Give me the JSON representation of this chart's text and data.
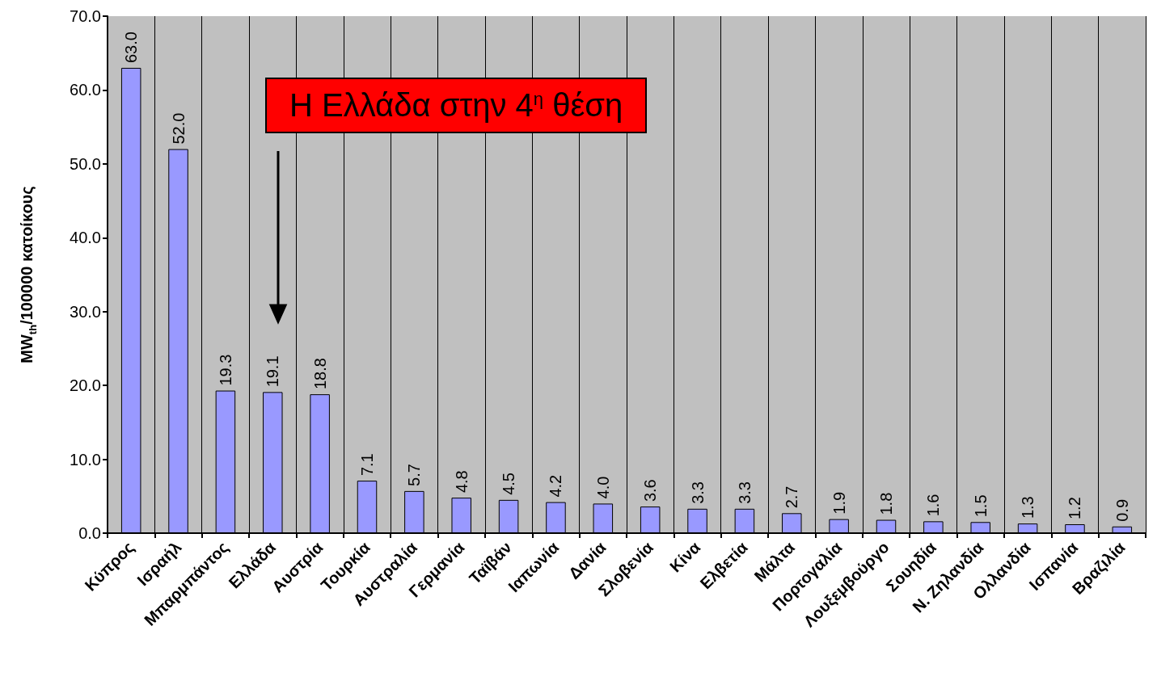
{
  "chart_data": {
    "type": "bar",
    "ylabel": "MW$_{th}$/100000 κατοίκους",
    "categories": [
      "Κύπρος",
      "Ισραήλ",
      "Μπαρμπάντος",
      "Ελλάδα",
      "Αυστρία",
      "Τουρκία",
      "Αυστραλία",
      "Γερμανία",
      "Ταϊβάν",
      "Ιαπωνία",
      "Δανία",
      "Σλοβενία",
      "Κίνα",
      "Ελβετία",
      "Μάλτα",
      "Πορτογαλία",
      "Λουξεμβούργο",
      "Σουηδία",
      "Ν. Ζηλανδία",
      "Ολλανδία",
      "Ισπανία",
      "Βραζιλία"
    ],
    "values": [
      63.0,
      52.0,
      19.3,
      19.1,
      18.8,
      7.1,
      5.7,
      4.8,
      4.5,
      4.2,
      4.0,
      3.6,
      3.3,
      3.3,
      2.7,
      1.9,
      1.8,
      1.6,
      1.5,
      1.3,
      1.2,
      0.9
    ],
    "value_labels": [
      "63.0",
      "52.0",
      "19.3",
      "19.1",
      "18.8",
      "7.1",
      "5.7",
      "4.8",
      "4.5",
      "4.2",
      "4.0",
      "3.6",
      "3.3",
      "3.3",
      "2.7",
      "1.9",
      "1.8",
      "1.6",
      "1.5",
      "1.3",
      "1.2",
      "0.9"
    ],
    "color": "#9999ff",
    "ylim": [
      0,
      70
    ],
    "yticks": [
      {
        "value": 0,
        "label": "0.0"
      },
      {
        "value": 10,
        "label": "10.0"
      },
      {
        "value": 20,
        "label": "20.0"
      },
      {
        "value": 30,
        "label": "30.0"
      },
      {
        "value": 40,
        "label": "40.0"
      },
      {
        "value": 50,
        "label": "50.0"
      },
      {
        "value": 60,
        "label": "60.0"
      },
      {
        "value": 70,
        "label": "70.0"
      }
    ],
    "grid": "x",
    "annotations": [
      "Η Ελλάδα στην 4$^{η}$ θέση"
    ]
  }
}
